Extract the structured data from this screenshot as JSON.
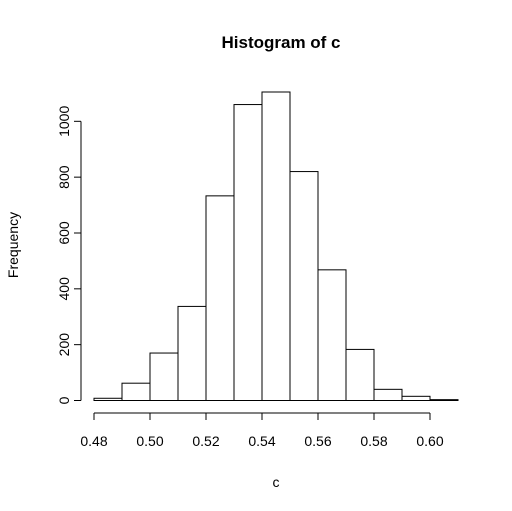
{
  "chart_data": {
    "type": "bar",
    "title": "Histogram of c",
    "xlabel": "c",
    "ylabel": "Frequency",
    "bin_edges": [
      0.48,
      0.49,
      0.5,
      0.51,
      0.52,
      0.53,
      0.54,
      0.55,
      0.56,
      0.57,
      0.58,
      0.59,
      0.6,
      0.61
    ],
    "values": [
      8,
      62,
      170,
      337,
      733,
      1060,
      1105,
      820,
      468,
      183,
      40,
      15,
      3
    ],
    "xlim": [
      0.48,
      0.61
    ],
    "ylim": [
      0,
      1105
    ],
    "x_ticks": [
      0.48,
      0.5,
      0.52,
      0.54,
      0.56,
      0.58,
      0.6
    ],
    "x_tick_labels": [
      "0.48",
      "0.50",
      "0.52",
      "0.54",
      "0.56",
      "0.58",
      "0.60"
    ],
    "y_ticks": [
      0,
      200,
      400,
      600,
      800,
      1000
    ],
    "y_tick_labels": [
      "0",
      "200",
      "400",
      "600",
      "800",
      "1000"
    ],
    "grid": false,
    "bar_fill": "#ffffff",
    "bar_stroke": "#000000"
  }
}
